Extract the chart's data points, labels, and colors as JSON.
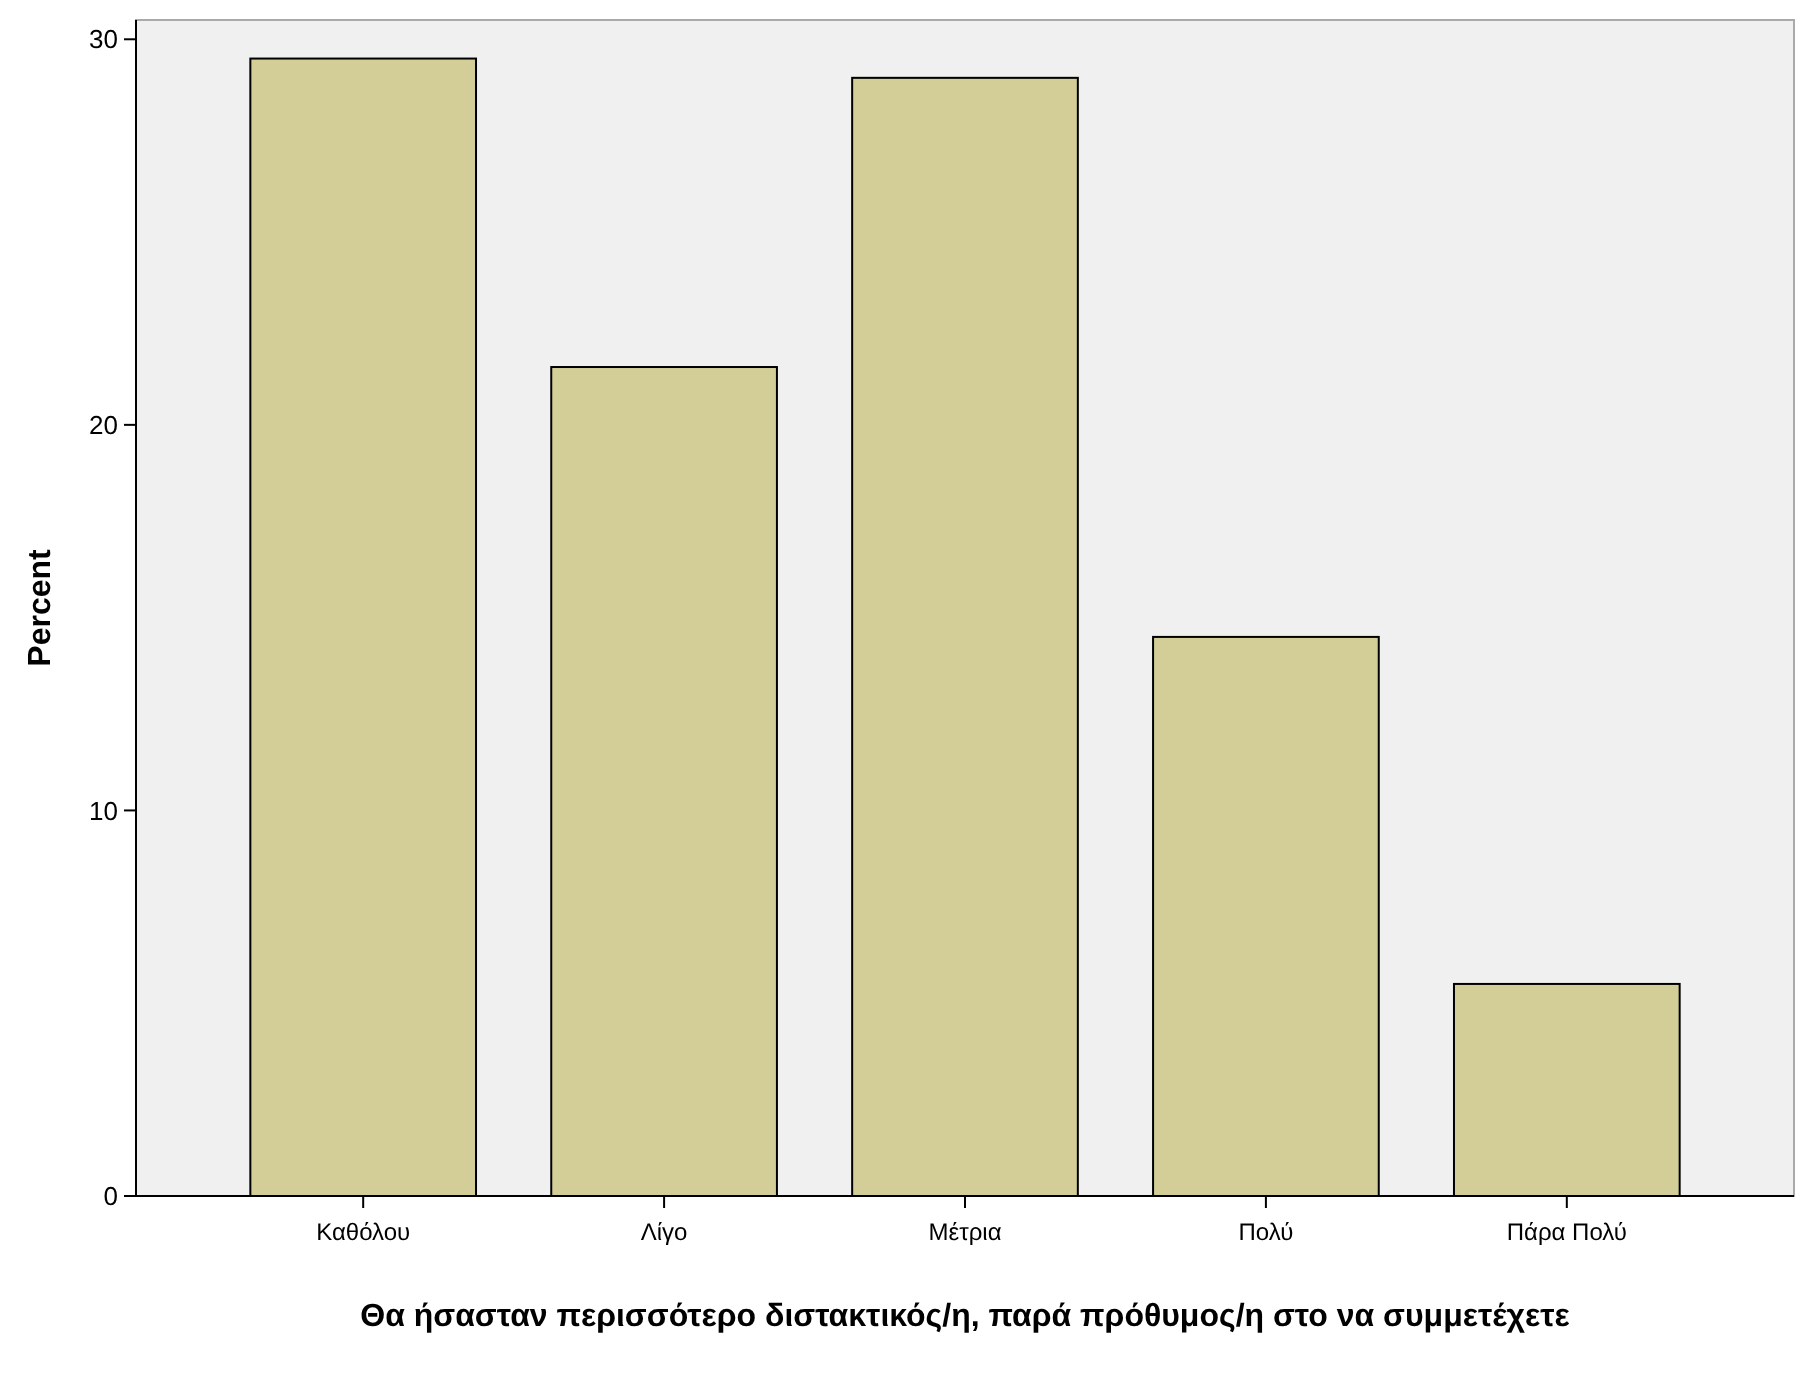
{
  "chart_data": {
    "type": "bar",
    "xlabel": "Θα ήσασταν περισσότερο διστακτικός/η, παρά πρόθυμος/η στο να συμμετέχετε",
    "ylabel": "Percent",
    "categories": [
      "Καθόλου",
      "Λίγο",
      "Μέτρια",
      "Πολύ",
      "Πάρα Πολύ"
    ],
    "values": [
      29.5,
      21.5,
      29.0,
      14.5,
      5.5
    ],
    "color": "#d3ce97",
    "ylim": [
      0,
      30.5
    ],
    "yticks": [
      0,
      10,
      20,
      30
    ],
    "grid": false
  }
}
